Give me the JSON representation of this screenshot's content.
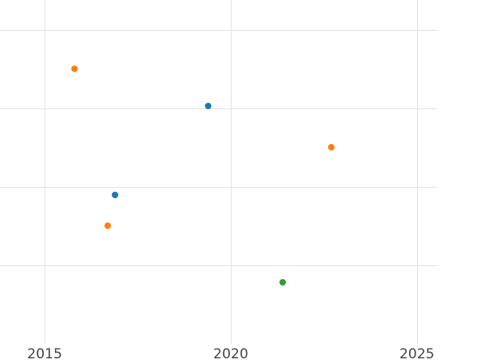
{
  "chart_data": {
    "type": "scatter",
    "title": "",
    "xlabel": "",
    "ylabel": "",
    "grid": true,
    "grid_color": "#e3e3e3",
    "legend": "none",
    "xlim": [
      2013.8,
      2025.55
    ],
    "ylim": [
      0,
      4.38
    ],
    "x_ticks": [
      {
        "value": 2015,
        "label": "2015"
      },
      {
        "value": 2020,
        "label": "2020"
      },
      {
        "value": 2025,
        "label": "2025"
      }
    ],
    "y_gridlines": [
      1,
      2,
      3,
      4
    ],
    "series": [
      {
        "name": "series-blue",
        "color": "#1f77b4",
        "points": [
          {
            "x": 2019.4,
            "y": 3.03
          },
          {
            "x": 2016.9,
            "y": 1.9
          }
        ]
      },
      {
        "name": "series-orange",
        "color": "#ff7f0e",
        "points": [
          {
            "x": 2015.8,
            "y": 3.5
          },
          {
            "x": 2016.7,
            "y": 1.5
          },
          {
            "x": 2022.7,
            "y": 2.5
          }
        ]
      },
      {
        "name": "series-green",
        "color": "#2ca02c",
        "points": [
          {
            "x": 2021.4,
            "y": 0.78
          }
        ]
      }
    ]
  }
}
